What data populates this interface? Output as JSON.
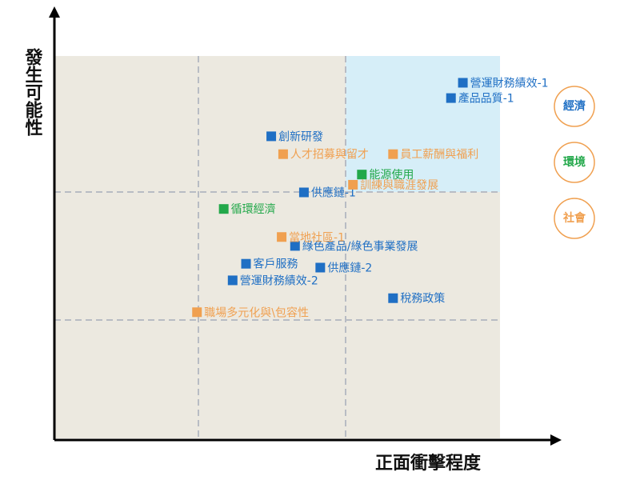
{
  "chart_data": {
    "type": "scatter",
    "x_label": "正面衝擊程度",
    "y_label": "發生可能性",
    "xlim": [
      0,
      3
    ],
    "ylim": [
      0,
      3
    ],
    "series": [
      {
        "name": "經濟",
        "color": "#1f6fc4",
        "labels": [
          "營運財務績效-1",
          "產品品質-1",
          "創新研發",
          "供應鏈-1",
          "綠色產品/綠色事業發展",
          "客戶服務",
          "供應鏈-2",
          "營運財務績效-2",
          "稅務政策"
        ],
        "x": [
          2.75,
          2.67,
          1.46,
          1.68,
          1.62,
          1.29,
          1.79,
          1.2,
          2.28
        ],
        "values": [
          2.79,
          2.67,
          2.37,
          1.93,
          1.51,
          1.37,
          1.34,
          1.24,
          1.1
        ]
      },
      {
        "name": "環境",
        "color": "#22a84a",
        "labels": [
          "能源使用",
          "循環經濟"
        ],
        "x": [
          2.07,
          1.14
        ],
        "values": [
          2.07,
          1.8
        ]
      },
      {
        "name": "社會",
        "color": "#f0a050",
        "labels": [
          "人才招募與留才",
          "員工薪酬與福利",
          "訓練與職涯發展",
          "當地社區-1",
          "職場多元化與\\包容性"
        ],
        "x": [
          1.54,
          2.28,
          2.01,
          1.53,
          0.96
        ],
        "values": [
          2.23,
          2.23,
          1.99,
          1.58,
          0.99
        ]
      }
    ]
  }
}
